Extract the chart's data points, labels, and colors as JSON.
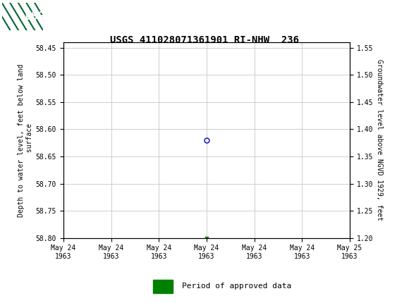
{
  "title": "USGS 411028071361901 RI-NHW  236",
  "title_fontsize": 10,
  "ylabel_left": "Depth to water level, feet below land\n surface",
  "ylabel_right": "Groundwater level above NGVD 1929, feet",
  "ylim_left": [
    58.8,
    58.44
  ],
  "ylim_right": [
    1.2,
    1.56
  ],
  "yticks_left": [
    58.45,
    58.5,
    58.55,
    58.6,
    58.65,
    58.7,
    58.75,
    58.8
  ],
  "yticks_right": [
    1.2,
    1.25,
    1.3,
    1.35,
    1.4,
    1.45,
    1.5,
    1.55
  ],
  "xlim": [
    0,
    6
  ],
  "xtick_labels": [
    "May 24\n1963",
    "May 24\n1963",
    "May 24\n1963",
    "May 24\n1963",
    "May 24\n1963",
    "May 24\n1963",
    "May 25\n1963"
  ],
  "xtick_positions": [
    0,
    1,
    2,
    3,
    4,
    5,
    6
  ],
  "data_point_x": 3.0,
  "data_point_y": 58.62,
  "green_point_x": 3.0,
  "green_point_y": 58.8,
  "circle_color": "#0000cc",
  "green_color": "#008000",
  "grid_color": "#bbbbbb",
  "bg_color": "#ffffff",
  "header_bg": "#006633",
  "legend_label": "Period of approved data",
  "font_family": "monospace",
  "tick_fontsize": 7,
  "label_fontsize": 7,
  "legend_fontsize": 8
}
